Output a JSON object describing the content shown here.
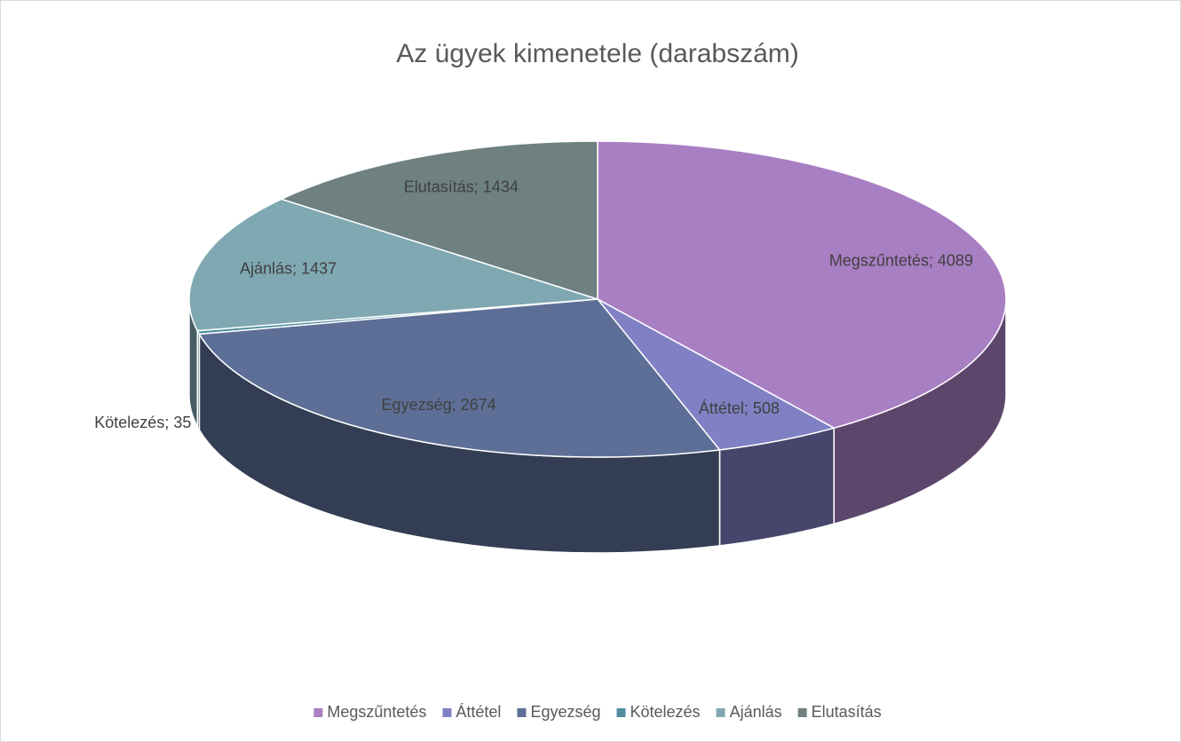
{
  "chart_data": {
    "type": "pie3d",
    "title": "Az ügyek kimenetele (darabszám)",
    "categories": [
      "Megszűntetés",
      "Áttétel",
      "Egyezség",
      "Kötelezés",
      "Ajánlás",
      "Elutasítás"
    ],
    "values": [
      4089,
      508,
      2674,
      35,
      1437,
      1434
    ],
    "value_labels": [
      "Megszűntetés; 4089",
      "Áttétel; 508",
      "Egyezség; 2674",
      "Kötelezés; 35",
      "Ajánlás; 1437",
      "Elutasítás; 1434"
    ],
    "colors": [
      "#a97fc4",
      "#8080c4",
      "#5d6f96",
      "#4f8fa0",
      "#7fa8b2",
      "#6e8080"
    ],
    "legend": "bottom"
  }
}
